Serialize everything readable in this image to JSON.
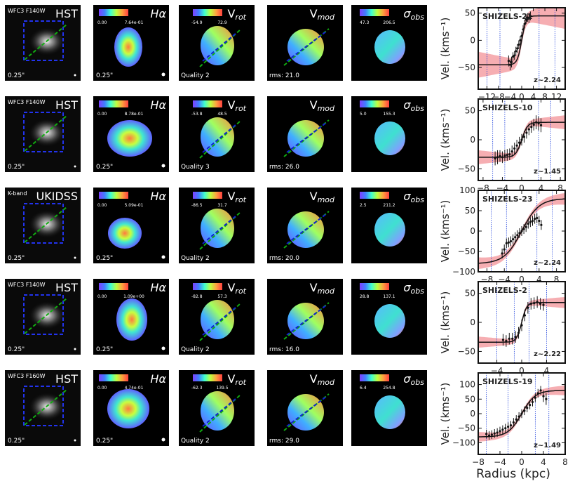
{
  "figure": {
    "xlabel": "Radius (kpc)",
    "ylabel": "Vel. (kms⁻¹)"
  },
  "panel_labels": {
    "halpha": "Hα",
    "vrot": "V_rot",
    "vmod": "V_mod",
    "sigma": "σ_obs",
    "scale": "0.25\""
  },
  "rows": [
    {
      "name": "SHIZELS-21",
      "z": "z~2.24",
      "band_small": "WFC3 F140W",
      "band_big": "HST",
      "halpha_cb": [
        "0.00",
        "7.64e-01"
      ],
      "vrot_cb": [
        "-54.9",
        "72.9"
      ],
      "sigma_cb": [
        "47.3",
        "206.5"
      ],
      "quality": "Quality 2",
      "rms": "rms: 21.0"
    },
    {
      "name": "SHIZELS-10",
      "z": "z~1.45",
      "band_small": "WFC3 F140W",
      "band_big": "HST",
      "halpha_cb": [
        "0.00",
        "8.78e-01"
      ],
      "vrot_cb": [
        "-53.8",
        "48.5"
      ],
      "sigma_cb": [
        "5.0",
        "155.3"
      ],
      "quality": "Quality 3",
      "rms": "rms: 26.0"
    },
    {
      "name": "SHIZELS-23",
      "z": "z~2.24",
      "band_small": "K-band",
      "band_big": "UKIDSS",
      "halpha_cb": [
        "0.00",
        "5.09e-01"
      ],
      "vrot_cb": [
        "-86.5",
        "31.7"
      ],
      "sigma_cb": [
        "2.5",
        "211.2"
      ],
      "quality": "Quality 2",
      "rms": "rms: 20.0"
    },
    {
      "name": "SHIZELS-2",
      "z": "z~2.22",
      "band_small": "WFC3 F140W",
      "band_big": "HST",
      "halpha_cb": [
        "0.00",
        "1.09e+00"
      ],
      "vrot_cb": [
        "-82.8",
        "57.3"
      ],
      "sigma_cb": [
        "28.8",
        "137.1"
      ],
      "quality": "Quality 2",
      "rms": "rms: 16.0"
    },
    {
      "name": "SHIZELS-19",
      "z": "z~1.49",
      "band_small": "WFC3 F160W",
      "band_big": "HST",
      "halpha_cb": [
        "0.00",
        "4.74e-01"
      ],
      "vrot_cb": [
        "-62.3",
        "139.5"
      ],
      "sigma_cb": [
        "6.4",
        "254.8"
      ],
      "quality": "Quality 2",
      "rms": "rms: 29.0"
    }
  ],
  "chart_data": [
    {
      "type": "line",
      "title": "SHIZELS-21",
      "xlim": [
        -15,
        15
      ],
      "ylim": [
        -90,
        60
      ],
      "xticks": [
        -12,
        -8,
        -4,
        0,
        4,
        8,
        12
      ],
      "yticks": [
        -50,
        0,
        50
      ],
      "curve": {
        "vmax": 45,
        "rt": 1.5
      },
      "band_halfwidth": 20,
      "vlines": [
        -12,
        -7.5,
        6,
        11.5
      ],
      "points": {
        "x": [
          -4.5,
          -4,
          -3.5,
          -3,
          -2.5,
          -2,
          -1.5,
          -1,
          -0.5,
          0,
          0.5,
          1,
          1.5,
          2,
          2.5,
          3
        ],
        "y": [
          -38,
          -45,
          -40,
          -30,
          -28,
          -20,
          -15,
          -8,
          0,
          8,
          20,
          30,
          38,
          42,
          40,
          45
        ],
        "err": [
          10,
          10,
          10,
          8,
          8,
          8,
          8,
          8,
          8,
          8,
          8,
          8,
          8,
          8,
          8,
          8
        ]
      }
    },
    {
      "type": "line",
      "title": "SHIZELS-10",
      "xlim": [
        -9,
        9
      ],
      "ylim": [
        -70,
        70
      ],
      "xticks": [
        -8,
        -4,
        0,
        4,
        8
      ],
      "yticks": [
        -50,
        0,
        50
      ],
      "curve": {
        "vmax": 30,
        "rt": 1.2
      },
      "band_halfwidth": 10,
      "vlines": [
        -6,
        -3.5,
        3.5,
        6
      ],
      "points": {
        "x": [
          -5.5,
          -5,
          -4.5,
          -4,
          -3.5,
          -3,
          -2.5,
          -2,
          -1.5,
          -1,
          -0.5,
          0,
          0.5,
          1,
          1.5,
          2,
          2.5,
          3,
          3.5,
          4
        ],
        "y": [
          -32,
          -30,
          -28,
          -30,
          -27,
          -26,
          -25,
          -20,
          -15,
          -10,
          -5,
          0,
          5,
          12,
          18,
          22,
          26,
          30,
          28,
          25
        ],
        "err": [
          12,
          12,
          10,
          10,
          10,
          10,
          10,
          10,
          10,
          10,
          10,
          10,
          10,
          10,
          10,
          10,
          10,
          12,
          12,
          12
        ]
      }
    },
    {
      "type": "line",
      "title": "SHIZELS-23",
      "xlim": [
        -10,
        10
      ],
      "ylim": [
        -100,
        100
      ],
      "xticks": [
        -8,
        -4,
        0,
        4,
        8
      ],
      "yticks": [
        -100,
        -50,
        0,
        50,
        100
      ],
      "curve": {
        "vmax": 80,
        "rt": 4
      },
      "band_halfwidth": 12,
      "vlines": [
        -7,
        -3.5,
        3.5,
        7
      ],
      "points": {
        "x": [
          -4.5,
          -4,
          -3.5,
          -3,
          -2.5,
          -2,
          -1.5,
          -1,
          -0.5,
          0,
          0.5,
          1,
          1.5,
          2,
          2.5,
          3,
          3.5,
          4,
          4.5
        ],
        "y": [
          -55,
          -45,
          -30,
          -28,
          -25,
          -20,
          -15,
          -10,
          -5,
          0,
          5,
          10,
          18,
          22,
          25,
          30,
          32,
          25,
          15
        ],
        "err": [
          12,
          12,
          12,
          12,
          12,
          12,
          12,
          12,
          12,
          12,
          12,
          12,
          12,
          12,
          12,
          12,
          12,
          12,
          12
        ]
      }
    },
    {
      "type": "line",
      "title": "SHIZELS-2",
      "xlim": [
        -7,
        7
      ],
      "ylim": [
        -70,
        70
      ],
      "xticks": [
        -4,
        0,
        4
      ],
      "yticks": [
        -50,
        0,
        50
      ],
      "curve": {
        "vmax": 34,
        "rt": 0.8
      },
      "band_halfwidth": 8,
      "vlines": [
        -4,
        -1.2,
        1.2,
        4
      ],
      "points": {
        "x": [
          -3,
          -2.5,
          -2,
          -1.5,
          -1,
          -0.5,
          0,
          0.5,
          1,
          1.5,
          2,
          2.5,
          3,
          3.5
        ],
        "y": [
          -30,
          -32,
          -28,
          -28,
          -25,
          -18,
          -5,
          12,
          25,
          32,
          33,
          35,
          32,
          30
        ],
        "err": [
          10,
          10,
          10,
          10,
          10,
          10,
          10,
          10,
          10,
          10,
          10,
          10,
          10,
          10
        ]
      }
    },
    {
      "type": "line",
      "title": "SHIZELS-19",
      "xlim": [
        -8,
        8
      ],
      "ylim": [
        -140,
        140
      ],
      "xticks": [
        -8,
        -4,
        0,
        4,
        8
      ],
      "yticks": [
        -100,
        -50,
        0,
        50,
        100
      ],
      "curve": {
        "vmax": 80,
        "rt": 2.5
      },
      "band_halfwidth": 14,
      "vlines": [
        -6.5,
        -2.5,
        2.5,
        5
      ],
      "points": {
        "x": [
          -6.5,
          -6,
          -5.5,
          -5,
          -4.5,
          -4,
          -3.5,
          -3,
          -2.5,
          -2,
          -1.5,
          -1,
          -0.5,
          0,
          0.5,
          1,
          1.5,
          2,
          2.5,
          3,
          3.5,
          4,
          4.5
        ],
        "y": [
          -70,
          -75,
          -72,
          -68,
          -65,
          -60,
          -55,
          -50,
          -45,
          -40,
          -30,
          -20,
          -10,
          0,
          10,
          20,
          30,
          40,
          55,
          70,
          80,
          60,
          50
        ],
        "err": [
          15,
          15,
          15,
          15,
          15,
          15,
          15,
          15,
          15,
          15,
          15,
          15,
          15,
          15,
          15,
          15,
          15,
          15,
          15,
          15,
          15,
          20,
          20
        ]
      }
    }
  ]
}
